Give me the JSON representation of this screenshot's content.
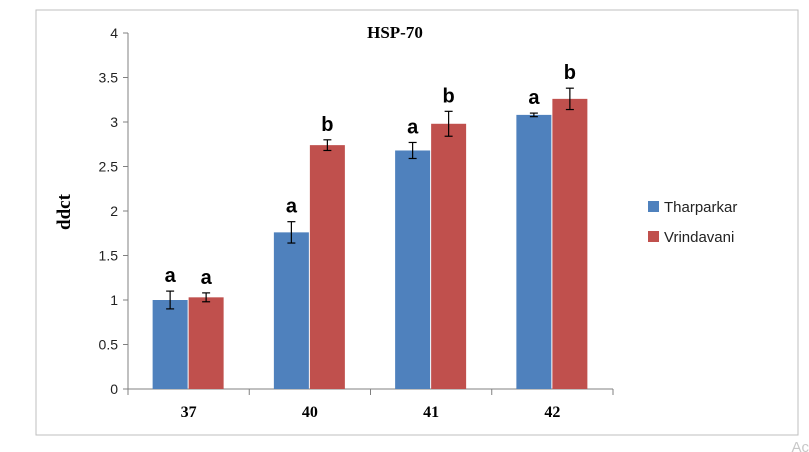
{
  "chart_data": {
    "type": "bar",
    "title": "HSP-70",
    "ylabel": "ddct",
    "xlabel": "",
    "categories": [
      "37",
      "40",
      "41",
      "42"
    ],
    "ylim": [
      0,
      4
    ],
    "yticks": [
      "0",
      "0.5",
      "1",
      "1.5",
      "2",
      "2.5",
      "3",
      "3.5",
      "4"
    ],
    "grid": false,
    "legend_position": "right",
    "series": [
      {
        "name": "Tharparkar",
        "color": "#4f81bd",
        "values": [
          1.0,
          1.76,
          2.68,
          3.08
        ],
        "errors": [
          0.1,
          0.12,
          0.09,
          0.02
        ],
        "significance": [
          "a",
          "a",
          "a",
          "a"
        ]
      },
      {
        "name": "Vrindavani",
        "color": "#c0504d",
        "values": [
          1.03,
          2.74,
          2.98,
          3.26
        ],
        "errors": [
          0.05,
          0.06,
          0.14,
          0.12
        ],
        "significance": [
          "a",
          "b",
          "b",
          "b"
        ]
      }
    ]
  },
  "corner_text": "Ac"
}
